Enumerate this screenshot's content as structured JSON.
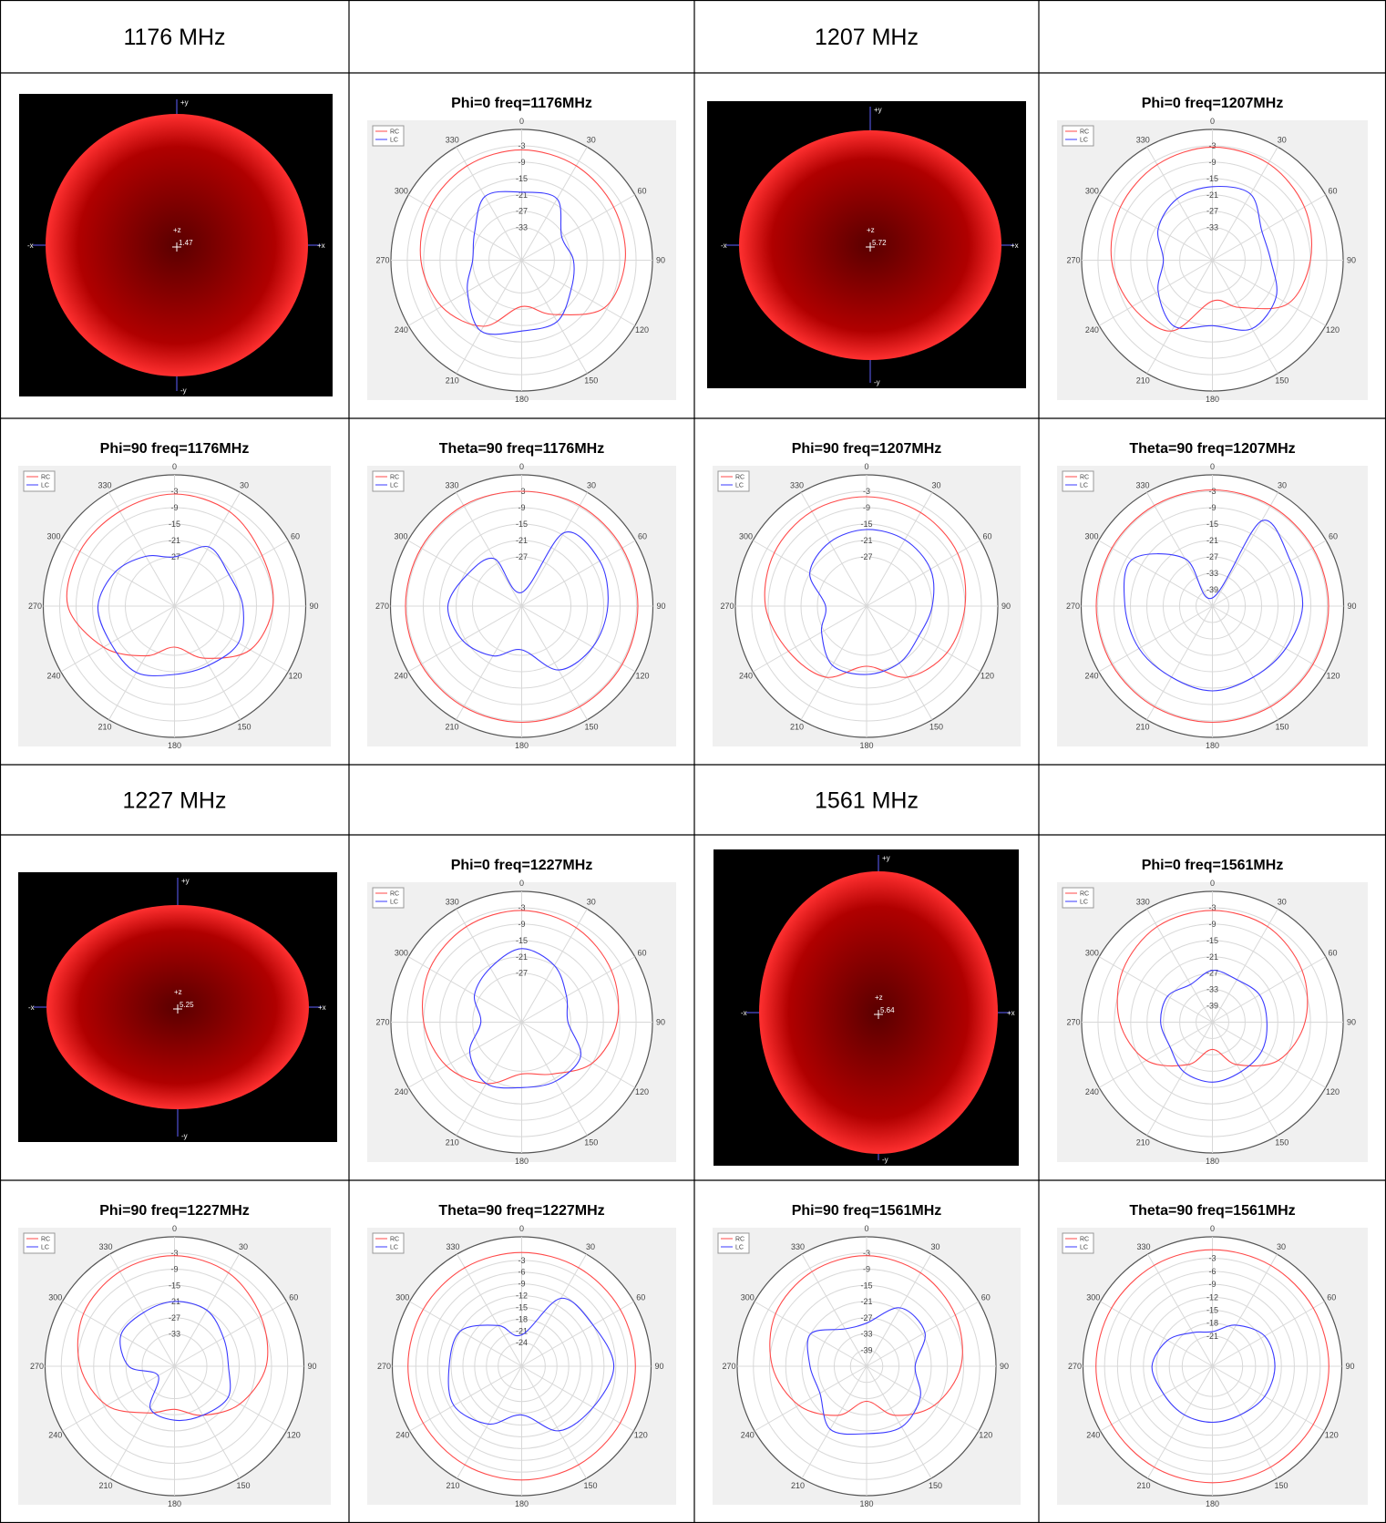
{
  "headers": [
    "1176 MHz",
    "1207 MHz",
    "1227 MHz",
    "1561 MHz"
  ],
  "patterns": [
    {
      "axes": [
        "+y",
        "-y",
        "-x",
        "+x",
        "+z"
      ],
      "value": "1.47"
    },
    {
      "axes": [
        "+y",
        "-y",
        "-x",
        "+x",
        "+z"
      ],
      "value": "5.72"
    },
    {
      "axes": [
        "+y",
        "-y",
        "-x",
        "+x",
        "+z"
      ],
      "value": "5.25"
    },
    {
      "axes": [
        "+y",
        "-y",
        "-x",
        "+x",
        "+z"
      ],
      "value": "5.64"
    }
  ],
  "charts": [
    {
      "type": "polar",
      "title": "Phi=0 freq=1176MHz",
      "thetaticks": [
        0,
        30,
        60,
        90,
        120,
        150,
        180,
        210,
        240,
        270,
        300,
        330
      ],
      "rlim": [
        -45,
        3
      ],
      "rticks": [
        -3,
        -9,
        -15,
        -21,
        -27,
        -33
      ],
      "theta": [
        0,
        30,
        60,
        90,
        120,
        150,
        180,
        210,
        240,
        270,
        300,
        330
      ],
      "series": [
        {
          "name": "RC",
          "color": "#ff4a4a",
          "values": [
            -4.5,
            -5,
            -6,
            -7,
            -10,
            -22,
            -28,
            -17,
            -11,
            -8,
            -6,
            -5
          ]
        },
        {
          "name": "LC",
          "color": "#3a3aff",
          "values": [
            -20,
            -19,
            -28,
            -26,
            -24,
            -19,
            -19,
            -15,
            -22,
            -27,
            -25,
            -18
          ]
        }
      ]
    },
    {
      "type": "polar",
      "title": "Phi=0 freq=1207MHz",
      "thetaticks": [
        0,
        30,
        60,
        90,
        120,
        150,
        180,
        210,
        240,
        270,
        300,
        330
      ],
      "rlim": [
        -45,
        3
      ],
      "rticks": [
        -3,
        -9,
        -15,
        -21,
        -27,
        -33
      ],
      "theta": [
        0,
        30,
        60,
        90,
        120,
        150,
        180,
        210,
        240,
        270,
        300,
        330
      ],
      "series": [
        {
          "name": "RC",
          "color": "#ff4a4a",
          "values": [
            -3.5,
            -4,
            -6,
            -9,
            -13,
            -25,
            -30,
            -15,
            -11,
            -8,
            -6,
            -4.5
          ]
        },
        {
          "name": "LC",
          "color": "#3a3aff",
          "values": [
            -18,
            -17,
            -24,
            -23.6,
            -18,
            -16,
            -21,
            -17,
            -22,
            -27,
            -22,
            -19
          ]
        }
      ]
    },
    {
      "type": "polar",
      "title": "Phi=90 freq=1176MHz",
      "thetaticks": [
        0,
        30,
        60,
        90,
        120,
        150,
        180,
        210,
        240,
        270,
        300,
        330
      ],
      "rlim": [
        -45,
        3
      ],
      "rticks": [
        -3,
        -9,
        -15,
        -21,
        -27
      ],
      "theta": [
        0,
        30,
        60,
        90,
        120,
        150,
        180,
        210,
        240,
        270,
        300,
        330
      ],
      "series": [
        {
          "name": "RC",
          "color": "#ff4a4a",
          "values": [
            -4,
            -5,
            -8,
            -9,
            -13,
            -23,
            -30,
            -24,
            -15,
            -6,
            -5,
            -5
          ]
        },
        {
          "name": "LC",
          "color": "#3a3aff",
          "values": [
            -27,
            -20,
            -22,
            -20,
            -18,
            -20,
            -20,
            -17,
            -18,
            -17,
            -20,
            -24
          ]
        }
      ]
    },
    {
      "type": "polar",
      "title": "Theta=90 freq=1176MHz",
      "thetaticks": [
        0,
        30,
        60,
        90,
        120,
        150,
        180,
        210,
        240,
        270,
        300,
        330
      ],
      "rlim": [
        -45,
        3
      ],
      "rticks": [
        -3,
        -9,
        -15,
        -21,
        -27
      ],
      "theta": [
        0,
        30,
        60,
        90,
        120,
        150,
        180,
        210,
        240,
        270,
        300,
        330
      ],
      "series": [
        {
          "name": "RC",
          "color": "#ff4a4a",
          "values": [
            -3,
            -2.5,
            -2.5,
            -2.5,
            -2.5,
            -2.5,
            -2.5,
            -2.5,
            -2.5,
            -2.5,
            -2.5,
            -2.5
          ]
        },
        {
          "name": "LC",
          "color": "#3a3aff",
          "values": [
            -40,
            -14,
            -12,
            -13.5,
            -15,
            -18,
            -29,
            -24,
            -20,
            -18,
            -22,
            -25
          ]
        }
      ]
    },
    {
      "type": "polar",
      "title": "Phi=90 freq=1207MHz",
      "thetaticks": [
        0,
        30,
        60,
        90,
        120,
        150,
        180,
        210,
        240,
        270,
        300,
        330
      ],
      "rlim": [
        -45,
        3
      ],
      "rticks": [
        -3,
        -9,
        -15,
        -21,
        -27
      ],
      "theta": [
        0,
        30,
        60,
        90,
        120,
        150,
        180,
        210,
        240,
        270,
        300,
        330
      ],
      "series": [
        {
          "name": "RC",
          "color": "#ff4a4a",
          "values": [
            -5,
            -5.5,
            -6.5,
            -9,
            -11,
            -15,
            -23,
            -15,
            -12,
            -8,
            -6,
            -5
          ]
        },
        {
          "name": "LC",
          "color": "#3a3aff",
          "values": [
            -17,
            -17,
            -18,
            -21,
            -23,
            -21,
            -20,
            -20,
            -26,
            -30,
            -21,
            -18
          ]
        }
      ]
    },
    {
      "type": "polar",
      "title": "Theta=90 freq=1207MHz",
      "thetaticks": [
        0,
        30,
        60,
        90,
        120,
        150,
        180,
        210,
        240,
        270,
        300,
        330
      ],
      "rlim": [
        -45,
        3
      ],
      "rticks": [
        -3,
        -9,
        -15,
        -21,
        -27,
        -33,
        -39
      ],
      "theta": [
        0,
        30,
        60,
        90,
        120,
        150,
        180,
        210,
        240,
        270,
        300,
        330
      ],
      "series": [
        {
          "name": "RC",
          "color": "#ff4a4a",
          "values": [
            -2.5,
            -2.5,
            -2.5,
            -2.5,
            -2.5,
            -2.5,
            -2.5,
            -2.5,
            -2.5,
            -2.5,
            -2.5,
            -2.5
          ]
        },
        {
          "name": "LC",
          "color": "#3a3aff",
          "values": [
            -42,
            -9,
            -12,
            -12,
            -14,
            -15,
            -14,
            -15,
            -14,
            -13,
            -11,
            -25
          ]
        }
      ]
    },
    {
      "type": "polar",
      "title": "Phi=0 freq=1227MHz",
      "thetaticks": [
        0,
        30,
        60,
        90,
        120,
        150,
        180,
        210,
        240,
        270,
        300,
        330
      ],
      "rlim": [
        -45,
        3
      ],
      "rticks": [
        -3,
        -9,
        -15,
        -21,
        -27
      ],
      "theta": [
        0,
        30,
        60,
        90,
        120,
        150,
        180,
        210,
        240,
        270,
        300,
        330
      ],
      "series": [
        {
          "name": "RC",
          "color": "#ff4a4a",
          "values": [
            -4,
            -5,
            -7,
            -10,
            -15,
            -23,
            -26,
            -19,
            -13,
            -9,
            -6,
            -4.5
          ]
        },
        {
          "name": "LC",
          "color": "#3a3aff",
          "values": [
            -18,
            -21,
            -26,
            -28,
            -20,
            -20,
            -21,
            -19,
            -23,
            -30,
            -25,
            -22
          ]
        }
      ]
    },
    {
      "type": "polar",
      "title": "Phi=0 freq=1561MHz",
      "thetaticks": [
        0,
        30,
        60,
        90,
        120,
        150,
        180,
        210,
        240,
        270,
        300,
        330
      ],
      "rlim": [
        -45,
        3
      ],
      "rticks": [
        -3,
        -9,
        -15,
        -21,
        -27,
        -33,
        -39
      ],
      "theta": [
        0,
        30,
        60,
        90,
        120,
        150,
        180,
        210,
        240,
        270,
        300,
        330
      ],
      "series": [
        {
          "name": "RC",
          "color": "#ff4a4a",
          "values": [
            -4,
            -4.5,
            -7,
            -11,
            -17,
            -27,
            -35,
            -27,
            -17,
            -11,
            -7,
            -4.5
          ]
        },
        {
          "name": "LC",
          "color": "#3a3aff",
          "values": [
            -26,
            -27,
            -25,
            -25,
            -24,
            -24,
            -23,
            -24,
            -27,
            -26,
            -26,
            -29
          ]
        }
      ]
    },
    {
      "type": "polar",
      "title": "Phi=90 freq=1227MHz",
      "thetaticks": [
        0,
        30,
        60,
        90,
        120,
        150,
        180,
        210,
        240,
        270,
        300,
        330
      ],
      "rlim": [
        -45,
        3
      ],
      "rticks": [
        -3,
        -9,
        -15,
        -21,
        -27,
        -33
      ],
      "theta": [
        0,
        30,
        60,
        90,
        120,
        150,
        180,
        210,
        240,
        270,
        300,
        330
      ],
      "series": [
        {
          "name": "RC",
          "color": "#ff4a4a",
          "values": [
            -4,
            -5,
            -8,
            -11,
            -17,
            -24,
            -29,
            -25,
            -16,
            -10,
            -6,
            -4.5
          ]
        },
        {
          "name": "LC",
          "color": "#3a3aff",
          "values": [
            -21,
            -21,
            -24,
            -25,
            -22,
            -24,
            -25,
            -27,
            -38,
            -28,
            -22,
            -22
          ]
        }
      ]
    },
    {
      "type": "polar",
      "title": "Theta=90 freq=1227MHz",
      "thetaticks": [
        0,
        30,
        60,
        90,
        120,
        150,
        180,
        210,
        240,
        270,
        300,
        330
      ],
      "rlim": [
        -30,
        3
      ],
      "rticks": [
        -3,
        -6,
        -9,
        -12,
        -15,
        -18,
        -21,
        -24
      ],
      "theta": [
        0,
        30,
        60,
        90,
        120,
        150,
        180,
        210,
        240,
        270,
        300,
        330
      ],
      "series": [
        {
          "name": "RC",
          "color": "#ff4a4a",
          "values": [
            -1,
            -1,
            -1,
            -1,
            -1,
            -1,
            -1,
            -1,
            -1,
            -1,
            -1,
            -1
          ]
        },
        {
          "name": "LC",
          "color": "#3a3aff",
          "values": [
            -22,
            -10,
            -9,
            -6.5,
            -9,
            -11,
            -17.6,
            -13,
            -10,
            -11.5,
            -12,
            -18
          ]
        }
      ]
    },
    {
      "type": "polar",
      "title": "Phi=90 freq=1561MHz",
      "thetaticks": [
        0,
        30,
        60,
        90,
        120,
        150,
        180,
        210,
        240,
        270,
        300,
        330
      ],
      "rlim": [
        -45,
        3
      ],
      "rticks": [
        -3,
        -9,
        -15,
        -21,
        -27,
        -33,
        -39
      ],
      "theta": [
        0,
        30,
        60,
        90,
        120,
        150,
        180,
        210,
        240,
        270,
        300,
        330
      ],
      "series": [
        {
          "name": "RC",
          "color": "#ff4a4a",
          "values": [
            -4,
            -5,
            -7,
            -10,
            -16,
            -24,
            -32,
            -24,
            -16,
            -10,
            -6,
            -4.5
          ]
        },
        {
          "name": "LC",
          "color": "#3a3aff",
          "values": [
            -29,
            -20,
            -20,
            -27,
            -22,
            -19,
            -20,
            -18,
            -25,
            -24,
            -21,
            -29
          ]
        }
      ]
    },
    {
      "type": "polar",
      "title": "Theta=90 freq=1561MHz",
      "thetaticks": [
        0,
        30,
        60,
        90,
        120,
        150,
        180,
        210,
        240,
        270,
        300,
        330
      ],
      "rlim": [
        -28,
        2
      ],
      "rticks": [
        -3,
        -6,
        -9,
        -12,
        -15,
        -18,
        -21
      ],
      "theta": [
        0,
        30,
        60,
        90,
        120,
        150,
        180,
        210,
        240,
        270,
        300,
        330
      ],
      "series": [
        {
          "name": "RC",
          "color": "#ff4a4a",
          "values": [
            -1,
            -1,
            -1,
            -1,
            -1,
            -1,
            -1,
            -1,
            -1,
            -1,
            -1,
            -1
          ]
        },
        {
          "name": "LC",
          "color": "#3a3aff",
          "values": [
            -20,
            -17,
            -14,
            -13.5,
            -14,
            -15,
            -15,
            -15,
            -15,
            -14,
            -16,
            -19
          ]
        }
      ]
    }
  ]
}
